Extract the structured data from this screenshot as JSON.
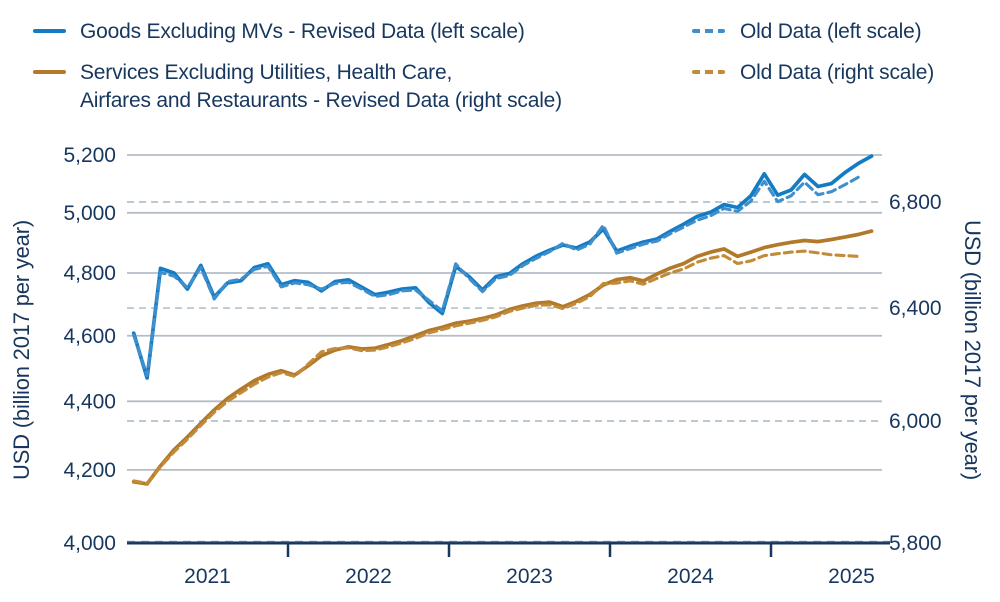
{
  "colors": {
    "text_navy": "#17375e",
    "blue_solid": "#147cc4",
    "blue_dashed": "#3f8fcc",
    "brown_solid": "#b2792a",
    "brown_dashed": "#c18b3a",
    "grid_solid": "#b4bdc6",
    "grid_dashed": "#a3b6c6",
    "axis_line": "#17375e",
    "axis_dash_overlay": "#51708f"
  },
  "legend": {
    "items": [
      {
        "id": "goods-revised",
        "label": "Goods Excluding MVs - Revised Data (left scale)",
        "line_style": "solid",
        "color": "#147cc4"
      },
      {
        "id": "services-revised",
        "label_line1": "Services Excluding Utilities, Health Care,",
        "label_line2": "Airfares and Restaurants - Revised Data (right scale)",
        "line_style": "solid",
        "color": "#b2792a"
      },
      {
        "id": "goods-old",
        "label": "Old Data (left scale)",
        "line_style": "dashed",
        "color": "#3f8fcc"
      },
      {
        "id": "services-old",
        "label": "Old Data (right scale)",
        "line_style": "dashed",
        "color": "#c18b3a"
      }
    ]
  },
  "axes": {
    "left_title": "USD (billion 2017 per year)",
    "right_title": "USD (billion 2017 per year)",
    "left_ticks": [
      {
        "label": "5,200",
        "value": 5200
      },
      {
        "label": "5,000",
        "value": 5000
      },
      {
        "label": "4,800",
        "value": 4800
      },
      {
        "label": "4,600",
        "value": 4600
      },
      {
        "label": "4,400",
        "value": 4400
      },
      {
        "label": "4,200",
        "value": 4200
      },
      {
        "label": "4,000",
        "value": 4000,
        "at_axis": true
      }
    ],
    "right_ticks": [
      {
        "label": "6,800",
        "value": 6800
      },
      {
        "label": "6,400",
        "value": 6400
      },
      {
        "label": "6,000",
        "value": 6000
      },
      {
        "label": "5,800",
        "value": 5800,
        "at_axis": true
      }
    ],
    "x_years": [
      "2021",
      "2022",
      "2023",
      "2024",
      "2025"
    ]
  },
  "chart_data": {
    "type": "line",
    "frequency": "monthly",
    "x_start": "2021-01",
    "x_end": "2025-08",
    "title": "",
    "xlabel": "",
    "ylabel_left": "USD (billion 2017 per year)",
    "ylabel_right": "USD (billion 2017 per year)",
    "left_axis": {
      "scale": "log",
      "ticks": [
        4000,
        4200,
        4400,
        4600,
        4800,
        5000,
        5200
      ],
      "gridline": "solid"
    },
    "right_axis": {
      "scale": "log",
      "ticks": [
        5800,
        6000,
        6400,
        6800
      ],
      "gridline": "dashed"
    },
    "legend_position": "top",
    "series": [
      {
        "name": "Goods Excluding MVs - Revised Data (left scale)",
        "axis": "left",
        "style": "solid",
        "color": "#147cc4",
        "values": [
          4608,
          4470,
          4815,
          4800,
          4748,
          4825,
          4722,
          4768,
          4775,
          4818,
          4830,
          4762,
          4775,
          4770,
          4742,
          4772,
          4778,
          4754,
          4730,
          4738,
          4748,
          4752,
          4705,
          4670,
          4822,
          4788,
          4745,
          4788,
          4798,
          4830,
          4855,
          4875,
          4892,
          4882,
          4902,
          4945,
          4872,
          4888,
          4902,
          4912,
          4938,
          4962,
          4988,
          5002,
          5028,
          5018,
          5058,
          5134,
          5060,
          5078,
          5132,
          5090,
          5100,
          5138,
          5170,
          5196
        ]
      },
      {
        "name": "Old Data (left scale)",
        "axis": "left",
        "style": "dashed",
        "color": "#3f8fcc",
        "values": [
          4602,
          4478,
          4802,
          4790,
          4753,
          4818,
          4716,
          4772,
          4780,
          4812,
          4822,
          4755,
          4768,
          4762,
          4748,
          4766,
          4770,
          4748,
          4724,
          4730,
          4742,
          4745,
          4712,
          4678,
          4830,
          4782,
          4740,
          4782,
          4792,
          4824,
          4848,
          4870,
          4898,
          4875,
          4895,
          4958,
          4865,
          4880,
          4895,
          4905,
          4930,
          4952,
          4975,
          4990,
          5015,
          5005,
          5040,
          5108,
          5038,
          5058,
          5105,
          5062,
          5072,
          5096,
          5122
        ]
      },
      {
        "name": "Services Excluding Utilities, Health Care, Airfares and Restaurants - Revised Data (right scale)",
        "axis": "right",
        "style": "solid",
        "color": "#b2792a",
        "values": [
          5795,
          5788,
          5848,
          5902,
          5945,
          5992,
          6038,
          6078,
          6110,
          6140,
          6162,
          6175,
          6160,
          6192,
          6228,
          6248,
          6260,
          6252,
          6255,
          6268,
          6282,
          6300,
          6318,
          6330,
          6345,
          6352,
          6362,
          6375,
          6395,
          6408,
          6418,
          6422,
          6405,
          6425,
          6450,
          6485,
          6505,
          6512,
          6500,
          6526,
          6548,
          6565,
          6592,
          6608,
          6620,
          6592,
          6608,
          6625,
          6636,
          6645,
          6652,
          6648,
          6656,
          6665,
          6675,
          6688
        ]
      },
      {
        "name": "Old Data (right scale)",
        "axis": "right",
        "style": "dashed",
        "color": "#c18b3a",
        "values": [
          5798,
          5790,
          5845,
          5895,
          5938,
          5985,
          6030,
          6068,
          6098,
          6128,
          6152,
          6168,
          6155,
          6198,
          6242,
          6254,
          6256,
          6246,
          6248,
          6260,
          6274,
          6290,
          6310,
          6322,
          6335,
          6345,
          6355,
          6368,
          6388,
          6400,
          6410,
          6412,
          6398,
          6418,
          6442,
          6490,
          6492,
          6500,
          6488,
          6510,
          6530,
          6545,
          6570,
          6585,
          6595,
          6565,
          6575,
          6595,
          6602,
          6608,
          6612,
          6605,
          6598,
          6595,
          6592
        ]
      }
    ]
  }
}
